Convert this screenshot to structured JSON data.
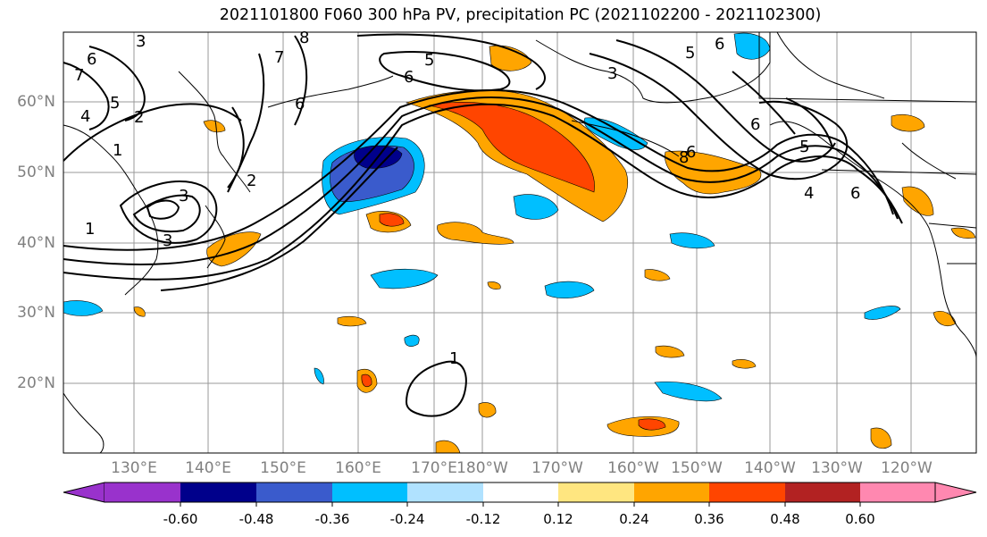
{
  "title": "2021101800 F060 300 hPa PV, precipitation PC (2021102200 - 2021102300)",
  "map": {
    "lat_labels": [
      "60°N",
      "50°N",
      "40°N",
      "30°N",
      "20°N"
    ],
    "lon_labels": [
      "130°E",
      "140°E",
      "150°E",
      "160°E",
      "170°E",
      "180°W",
      "170°W",
      "160°W",
      "150°W",
      "140°W",
      "130°W",
      "120°W"
    ],
    "contour_labels": [
      "3",
      "6",
      "7",
      "5",
      "4",
      "2",
      "1",
      "6",
      "5",
      "3",
      "8",
      "7",
      "6",
      "3",
      "2",
      "1",
      "6",
      "8",
      "6",
      "5",
      "4",
      "6",
      "5",
      "6",
      "3",
      "1"
    ]
  },
  "colorbar": {
    "colors": [
      "#9932cc",
      "#00008b",
      "#3a5bcc",
      "#00bfff",
      "#b0e2ff",
      "#ffffff",
      "#ffe680",
      "#ffa500",
      "#ff4500",
      "#b22222",
      "#ff88b0"
    ],
    "tick_labels": [
      "-0.60",
      "-0.48",
      "-0.36",
      "-0.24",
      "-0.12",
      "0.12",
      "0.24",
      "0.36",
      "0.48",
      "0.60"
    ]
  },
  "chart_data": {
    "type": "map",
    "title": "2021101800 F060 300 hPa PV, precipitation PC (2021102200 - 2021102300)",
    "lat_range": [
      10,
      70
    ],
    "lon_range": [
      "120°E",
      "110°W"
    ],
    "fill_variable": "precipitation PC",
    "contour_variable": "300 hPa PV",
    "colorbar_ticks": [
      -0.6,
      -0.48,
      -0.36,
      -0.24,
      -0.12,
      0.12,
      0.24,
      0.36,
      0.48,
      0.6
    ]
  }
}
